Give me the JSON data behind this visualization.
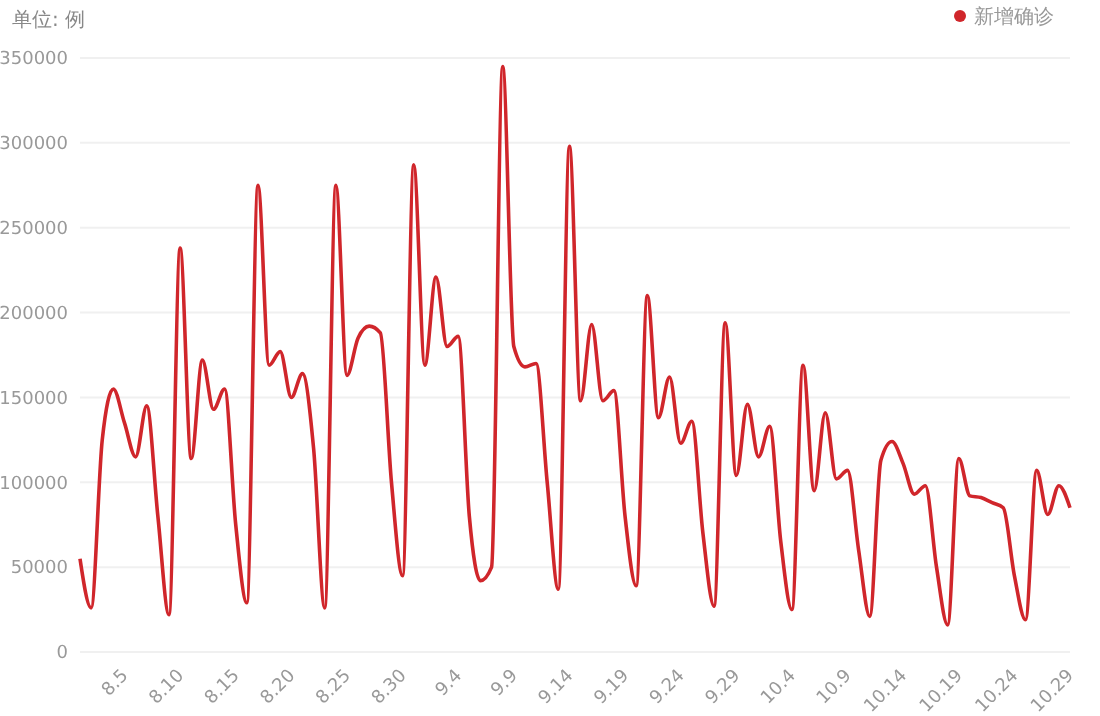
{
  "chart_data": {
    "type": "line",
    "ylabel": "单位: 例",
    "legend": "top right",
    "grid": "y",
    "marker": "none",
    "line_style": "solid",
    "x": [
      "--08-01",
      "--08-02",
      "--08-03",
      "--08-04",
      "--08-05",
      "--08-06",
      "--08-07",
      "--08-08",
      "--08-09",
      "--08-10",
      "--08-11",
      "--08-12",
      "--08-13",
      "--08-14",
      "--08-15",
      "--08-16",
      "--08-17",
      "--08-18",
      "--08-19",
      "--08-20",
      "--08-21",
      "--08-22",
      "--08-23",
      "--08-24",
      "--08-25",
      "--08-26",
      "--08-27",
      "--08-28",
      "--08-29",
      "--08-30",
      "--08-31",
      "--09-01",
      "--09-02",
      "--09-03",
      "--09-04",
      "--09-05",
      "--09-06",
      "--09-07",
      "--09-08",
      "--09-09",
      "--09-10",
      "--09-11",
      "--09-12",
      "--09-13",
      "--09-14",
      "--09-15",
      "--09-16",
      "--09-17",
      "--09-18",
      "--09-19",
      "--09-20",
      "--09-21",
      "--09-22",
      "--09-23",
      "--09-24",
      "--09-25",
      "--09-26",
      "--09-27",
      "--09-28",
      "--09-29",
      "--09-30",
      "--10-01",
      "--10-02",
      "--10-03",
      "--10-04",
      "--10-05",
      "--10-06",
      "--10-07",
      "--10-08",
      "--10-09",
      "--10-10",
      "--10-11",
      "--10-12",
      "--10-13",
      "--10-14",
      "--10-15",
      "--10-16",
      "--10-17",
      "--10-18",
      "--10-19",
      "--10-20",
      "--10-21",
      "--10-22",
      "--10-23",
      "--10-24",
      "--10-25",
      "--10-26",
      "--10-27",
      "--10-28",
      "--10-29"
    ],
    "series": [
      {
        "name": "新增确诊",
        "color": "#d0262b",
        "values": [
          55000,
          26000,
          125000,
          155000,
          135000,
          115000,
          145000,
          80000,
          22000,
          238000,
          114000,
          172000,
          143000,
          155000,
          75000,
          29000,
          275000,
          169000,
          177000,
          150000,
          164000,
          120000,
          26000,
          275000,
          163000,
          185000,
          192000,
          188000,
          100000,
          45000,
          287000,
          169000,
          221000,
          180000,
          186000,
          80000,
          42000,
          50000,
          345000,
          180000,
          168000,
          170000,
          100000,
          37000,
          298000,
          148000,
          193000,
          148000,
          154000,
          80000,
          39000,
          210000,
          138000,
          162000,
          123000,
          136000,
          70000,
          27000,
          194000,
          104000,
          146000,
          115000,
          133000,
          65000,
          25000,
          169000,
          95000,
          141000,
          102000,
          107000,
          60000,
          21000,
          113000,
          124000,
          111000,
          93000,
          98000,
          50000,
          16000,
          114000,
          92000,
          91000,
          88000,
          85000,
          45000,
          19000,
          107000,
          81000,
          98000,
          85000
        ]
      }
    ],
    "xlim": [
      "--08-01",
      "--10-29"
    ],
    "xticks": [
      {
        "value": "--08-05",
        "label": "8.5"
      },
      {
        "value": "--08-10",
        "label": "8.10"
      },
      {
        "value": "--08-15",
        "label": "8.15"
      },
      {
        "value": "--08-20",
        "label": "8.20"
      },
      {
        "value": "--08-25",
        "label": "8.25"
      },
      {
        "value": "--08-30",
        "label": "8.30"
      },
      {
        "value": "--09-04",
        "label": "9.4"
      },
      {
        "value": "--09-09",
        "label": "9.9"
      },
      {
        "value": "--09-14",
        "label": "9.14"
      },
      {
        "value": "--09-19",
        "label": "9.19"
      },
      {
        "value": "--09-24",
        "label": "9.24"
      },
      {
        "value": "--09-29",
        "label": "9.29"
      },
      {
        "value": "--10-04",
        "label": "10.4"
      },
      {
        "value": "--10-09",
        "label": "10.9"
      },
      {
        "value": "--10-14",
        "label": "10.14"
      },
      {
        "value": "--10-19",
        "label": "10.19"
      },
      {
        "value": "--10-24",
        "label": "10.24"
      },
      {
        "value": "--10-29",
        "label": "10.29"
      }
    ],
    "ylim": [
      0,
      350000
    ],
    "yticks": [
      0,
      50000,
      100000,
      150000,
      200000,
      250000,
      300000,
      350000
    ]
  }
}
